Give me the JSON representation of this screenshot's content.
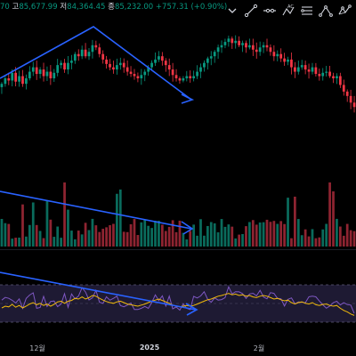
{
  "info_bar": {
    "open_value": "70",
    "high_label": "고",
    "high_value": "85,677.99",
    "low_label": "저",
    "low_value": "84,364.45",
    "close_label": "종",
    "close_value": "85,232.00",
    "change_value": "+757.31 (+0.90%)"
  },
  "toolbar": {
    "items": [
      {
        "name": "caret-down-icon"
      },
      {
        "name": "trend-line-icon"
      },
      {
        "name": "horizontal-ray-icon"
      },
      {
        "name": "abcd-pattern-icon"
      },
      {
        "name": "parallel-channel-icon"
      },
      {
        "name": "pitchfork-icon"
      },
      {
        "name": "xabcd-pattern-icon"
      }
    ]
  },
  "time_axis": {
    "ticks": [
      "12월",
      "2025",
      "2월"
    ]
  },
  "colors": {
    "up": "#089981",
    "down": "#f23645",
    "trend": "#2962ff",
    "rsi_line": "#7e57c2",
    "rsi_ma": "#f0b90b",
    "rsi_band": "#1e1a33"
  },
  "chart_data": {
    "type": "candlestick",
    "panes": [
      "price",
      "volume",
      "rsi"
    ],
    "price_path": [
      0.55,
      0.5,
      0.52,
      0.45,
      0.53,
      0.48,
      0.55,
      0.5,
      0.44,
      0.4,
      0.46,
      0.42,
      0.48,
      0.44,
      0.5,
      0.45,
      0.38,
      0.36,
      0.42,
      0.36,
      0.34,
      0.28,
      0.3,
      0.24,
      0.3,
      0.26,
      0.2,
      0.22,
      0.28,
      0.33,
      0.37,
      0.4,
      0.42,
      0.38,
      0.36,
      0.4,
      0.44,
      0.46,
      0.48,
      0.5,
      0.47,
      0.44,
      0.4,
      0.36,
      0.33,
      0.3,
      0.34,
      0.38,
      0.42,
      0.47,
      0.5,
      0.52,
      0.5,
      0.48,
      0.5,
      0.48,
      0.44,
      0.4,
      0.36,
      0.32,
      0.3,
      0.26,
      0.22,
      0.2,
      0.17,
      0.14,
      0.18,
      0.16,
      0.2,
      0.18,
      0.22,
      0.2,
      0.24,
      0.26,
      0.22,
      0.2,
      0.22,
      0.26,
      0.3,
      0.28,
      0.32,
      0.35,
      0.33,
      0.4,
      0.44,
      0.4,
      0.38,
      0.42,
      0.44,
      0.4,
      0.46,
      0.48,
      0.45,
      0.44,
      0.48,
      0.5,
      0.48,
      0.56,
      0.62,
      0.66,
      0.72,
      0.76
    ]
  }
}
